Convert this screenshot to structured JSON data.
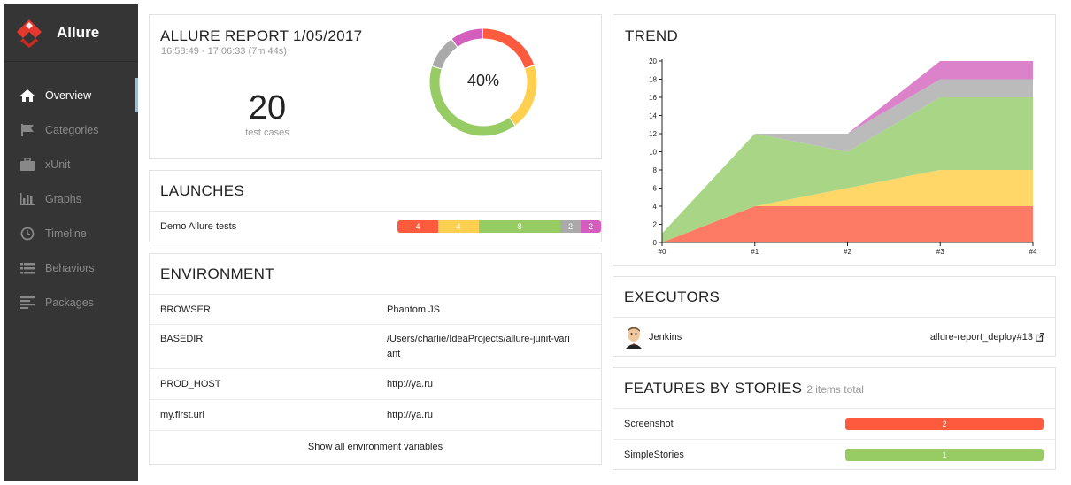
{
  "brand": {
    "name": "Allure"
  },
  "nav": [
    {
      "label": "Overview",
      "icon": "home-icon",
      "active": true
    },
    {
      "label": "Categories",
      "icon": "flag-icon"
    },
    {
      "label": "xUnit",
      "icon": "briefcase-icon"
    },
    {
      "label": "Graphs",
      "icon": "bar-chart-icon"
    },
    {
      "label": "Timeline",
      "icon": "clock-icon"
    },
    {
      "label": "Behaviors",
      "icon": "list-icon"
    },
    {
      "label": "Packages",
      "icon": "align-left-icon"
    }
  ],
  "summary": {
    "title": "ALLURE REPORT 1/05/2017",
    "time": "16:58:49 - 17:06:33 (7m 44s)",
    "count": "20",
    "count_label": "test cases",
    "percent": "40%",
    "donut": [
      {
        "status": "failed",
        "value": 4,
        "color": "#fd5a3e"
      },
      {
        "status": "broken",
        "value": 4,
        "color": "#ffd050"
      },
      {
        "status": "passed",
        "value": 8,
        "color": "#97cc64"
      },
      {
        "status": "skipped",
        "value": 2,
        "color": "#aaaaaa"
      },
      {
        "status": "unknown",
        "value": 2,
        "color": "#d35ebe"
      }
    ]
  },
  "launches": {
    "title": "LAUNCHES",
    "items": [
      {
        "name": "Demo Allure tests",
        "segments": [
          {
            "label": "4",
            "value": 4,
            "color": "#fd5a3e"
          },
          {
            "label": "4",
            "value": 4,
            "color": "#ffd050"
          },
          {
            "label": "8",
            "value": 8,
            "color": "#97cc64"
          },
          {
            "label": "2",
            "value": 2,
            "color": "#aaaaaa"
          },
          {
            "label": "2",
            "value": 2,
            "color": "#d35ebe"
          }
        ]
      }
    ]
  },
  "environment": {
    "title": "ENVIRONMENT",
    "rows": [
      {
        "key": "BROWSER",
        "value": "Phantom JS"
      },
      {
        "key": "BASEDIR",
        "value": "/Users/charlie/IdeaProjects/allure-junit-variant"
      },
      {
        "key": "PROD_HOST",
        "value": "http://ya.ru"
      },
      {
        "key": "my.first.url",
        "value": "http://ya.ru"
      }
    ],
    "show_all": "Show all environment variables"
  },
  "trend": {
    "title": "TREND"
  },
  "chart_data": {
    "type": "area",
    "title": "TREND",
    "categories": [
      "#0",
      "#1",
      "#2",
      "#3",
      "#4"
    ],
    "ylim": [
      0,
      20
    ],
    "yticks": [
      "0",
      "2",
      "4",
      "6",
      "8",
      "10",
      "12",
      "14",
      "16",
      "18",
      "20"
    ],
    "series": [
      {
        "values": [
          0,
          4,
          4,
          4,
          4
        ],
        "color": "#fd7a65"
      },
      {
        "values": [
          0,
          0,
          2,
          4,
          4
        ],
        "color": "#ffd768"
      },
      {
        "values": [
          1,
          8,
          4,
          8,
          8
        ],
        "color": "#a9d686"
      },
      {
        "values": [
          0,
          0,
          2,
          2,
          2
        ],
        "color": "#bbbbbb"
      },
      {
        "values": [
          0,
          0,
          0,
          2,
          2
        ],
        "color": "#dc82cb"
      }
    ]
  },
  "executors": {
    "title": "EXECUTORS",
    "items": [
      {
        "name": "Jenkins",
        "link": "allure-report_deploy#13"
      }
    ]
  },
  "features": {
    "title": "FEATURES BY STORIES",
    "subtitle": "2 items total",
    "items": [
      {
        "name": "Screenshot",
        "value": "2",
        "color": "#fd5a3e"
      },
      {
        "name": "SimpleStories",
        "value": "1",
        "color": "#97cc64"
      }
    ]
  }
}
